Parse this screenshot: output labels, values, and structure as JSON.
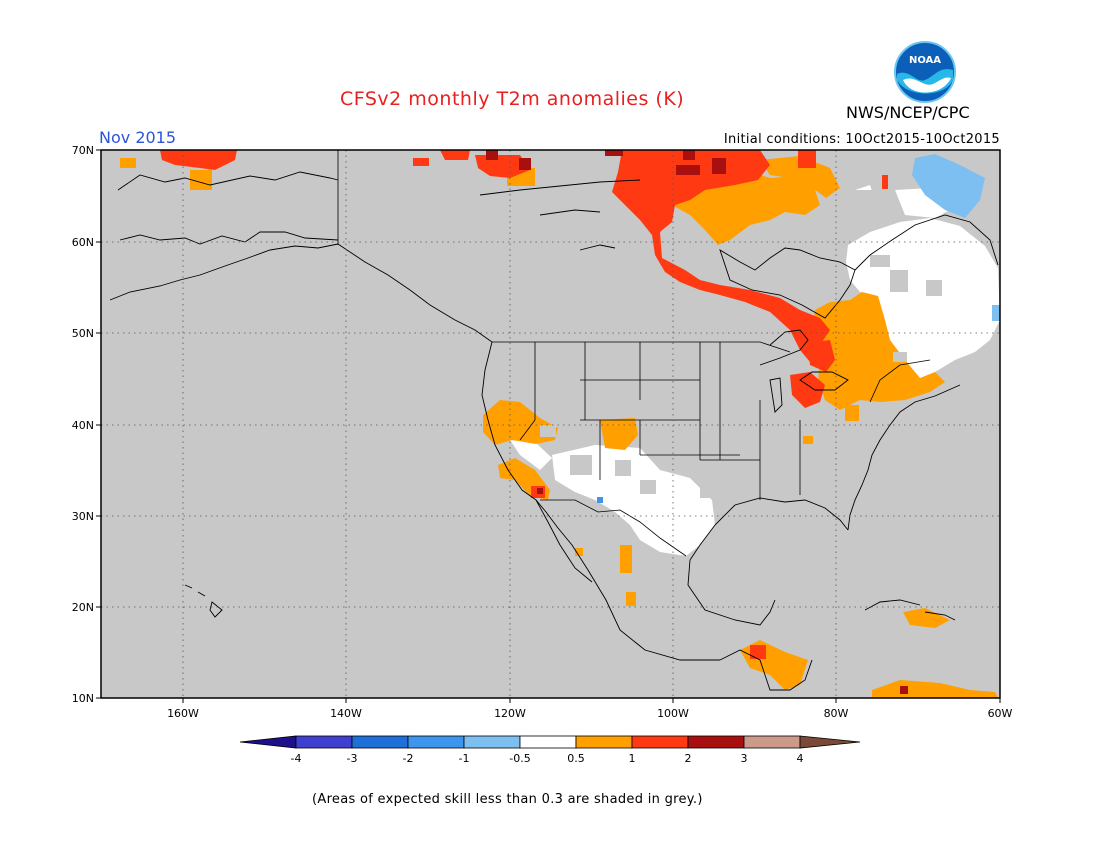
{
  "header": {
    "title": "CFSv2 monthly T2m anomalies (K)",
    "agency": "NWS/NCEP/CPC",
    "logo_text": "NOAA",
    "valid_month": "Nov 2015",
    "initial_conditions": "Initial conditions: 10Oct2015-10Oct2015"
  },
  "map": {
    "lat_ticks": [
      "70N",
      "60N",
      "50N",
      "40N",
      "30N",
      "20N",
      "10N"
    ],
    "lon_ticks": [
      "160W",
      "140W",
      "120W",
      "100W",
      "80W",
      "60W"
    ],
    "lat_range": [
      10,
      70
    ],
    "lon_range": [
      -170,
      -60
    ],
    "skill_mask_color": "#c8c8c8",
    "grid": "dotted"
  },
  "colorbar": {
    "labels": [
      "-4",
      "-3",
      "-2",
      "-1",
      "-0.5",
      "0.5",
      "1",
      "2",
      "3",
      "4"
    ],
    "colors": [
      "#1e0f8a",
      "#3f3fd0",
      "#1f6fd8",
      "#3d95ee",
      "#7dbff0",
      "#ffffff",
      "#ff9f00",
      "#ff3a12",
      "#a80f0f",
      "#cc9a88",
      "#7a4a36"
    ]
  },
  "footnote": "(Areas of expected skill less than 0.3 are shaded in grey.)"
}
